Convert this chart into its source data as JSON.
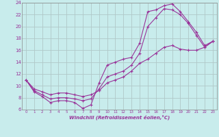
{
  "xlabel": "Windchill (Refroidissement éolien,°C)",
  "ylabel": "",
  "xlim": [
    -0.5,
    23.5
  ],
  "ylim": [
    6,
    24
  ],
  "xticks": [
    0,
    1,
    2,
    3,
    4,
    5,
    6,
    7,
    8,
    9,
    10,
    11,
    12,
    13,
    14,
    15,
    16,
    17,
    18,
    19,
    20,
    21,
    22,
    23
  ],
  "yticks": [
    6,
    8,
    10,
    12,
    14,
    16,
    18,
    20,
    22,
    24
  ],
  "bg_color": "#c8ecec",
  "line_color": "#993399",
  "grid_color": "#b0c8c8",
  "curve1_x": [
    0,
    1,
    2,
    3,
    4,
    5,
    6,
    7,
    8,
    9,
    10,
    11,
    12,
    13,
    14,
    15,
    16,
    17,
    18,
    19,
    20,
    21,
    22,
    23
  ],
  "curve1_y": [
    11.0,
    9.0,
    8.2,
    7.2,
    7.5,
    7.5,
    7.2,
    6.2,
    6.8,
    10.5,
    13.5,
    14.0,
    14.5,
    14.8,
    17.2,
    22.5,
    22.8,
    23.5,
    23.8,
    22.5,
    20.8,
    19.0,
    16.8,
    17.5
  ],
  "curve2_x": [
    0,
    1,
    2,
    3,
    4,
    5,
    6,
    7,
    8,
    9,
    10,
    11,
    12,
    13,
    14,
    15,
    16,
    17,
    18,
    19,
    20,
    21,
    22,
    23
  ],
  "curve2_y": [
    11.0,
    9.2,
    8.5,
    7.8,
    8.0,
    8.0,
    7.8,
    7.5,
    7.8,
    9.5,
    11.5,
    12.0,
    12.5,
    13.5,
    15.5,
    20.0,
    21.5,
    23.0,
    22.8,
    22.0,
    20.5,
    18.5,
    16.5,
    17.5
  ],
  "curve3_x": [
    0,
    1,
    2,
    3,
    4,
    5,
    6,
    7,
    8,
    9,
    10,
    11,
    12,
    13,
    14,
    15,
    16,
    17,
    18,
    19,
    20,
    21,
    22,
    23
  ],
  "curve3_y": [
    11.0,
    9.5,
    9.0,
    8.5,
    8.8,
    8.8,
    8.5,
    8.2,
    8.5,
    9.2,
    10.5,
    11.0,
    11.5,
    12.5,
    13.8,
    14.5,
    15.5,
    16.5,
    16.8,
    16.2,
    16.0,
    16.0,
    16.5,
    17.5
  ]
}
